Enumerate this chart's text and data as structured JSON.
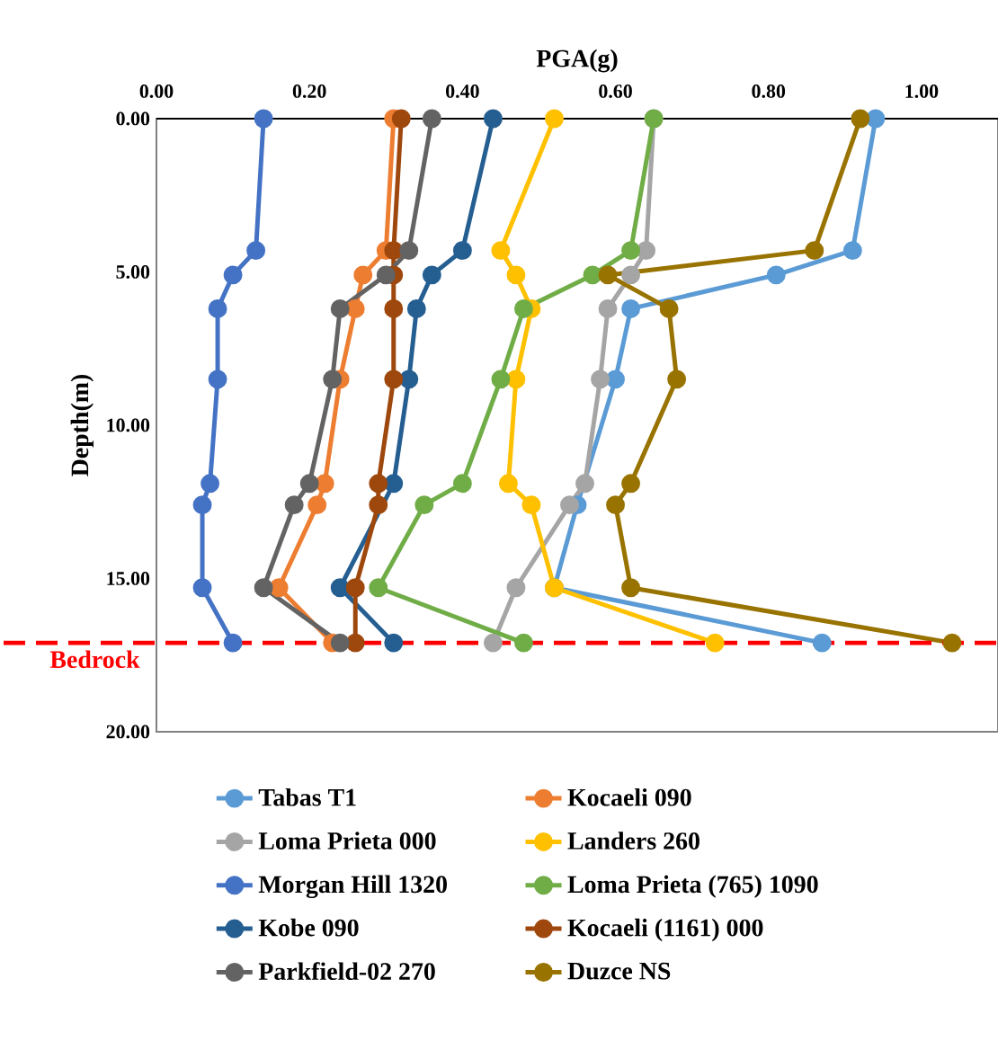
{
  "chart_data": {
    "type": "line",
    "xlabel": "PGA(g)",
    "ylabel": "Depth(m)",
    "xlim": [
      0,
      1.1
    ],
    "ylim": [
      20,
      0
    ],
    "xticks": [
      {
        "value": 0,
        "label": "0.00"
      },
      {
        "value": 0.2,
        "label": "0.20"
      },
      {
        "value": 0.4,
        "label": "0.40"
      },
      {
        "value": 0.6,
        "label": "0.60"
      },
      {
        "value": 0.8,
        "label": "0.80"
      },
      {
        "value": 1.0,
        "label": "1.00"
      }
    ],
    "yticks": [
      {
        "value": 0,
        "label": "0.00"
      },
      {
        "value": 5,
        "label": "5.00"
      },
      {
        "value": 10,
        "label": "10.00"
      },
      {
        "value": 15,
        "label": "15.00"
      },
      {
        "value": 20,
        "label": "20.00"
      }
    ],
    "grid": false,
    "legend": "bottom",
    "marker": "circle",
    "line_style": "solid",
    "ref_lines": [
      {
        "axis": "y",
        "value": 17.1,
        "label": "Bedrock",
        "color": "#ff0000",
        "line_style": "dashed"
      }
    ],
    "series": [
      {
        "name": "Tabas T1",
        "color": "#5b9bd5",
        "x": [
          0.94,
          0.91,
          0.81,
          0.62,
          0.6,
          0.55,
          0.52,
          0.87
        ],
        "values": [
          0,
          4.3,
          5.1,
          6.2,
          8.5,
          12.6,
          15.3,
          17.1
        ]
      },
      {
        "name": "Kocaeli 090",
        "color": "#ed7d31",
        "x": [
          0.31,
          0.3,
          0.27,
          0.26,
          0.24,
          0.22,
          0.21,
          0.16,
          0.23
        ],
        "values": [
          0,
          4.3,
          5.1,
          6.2,
          8.5,
          11.9,
          12.6,
          15.3,
          17.1
        ]
      },
      {
        "name": "Loma Prieta 000",
        "color": "#a5a5a5",
        "x": [
          0.65,
          0.64,
          0.62,
          0.59,
          0.58,
          0.56,
          0.54,
          0.47,
          0.44
        ],
        "values": [
          0,
          4.3,
          5.1,
          6.2,
          8.5,
          11.9,
          12.6,
          15.3,
          17.1
        ]
      },
      {
        "name": "Landers 260",
        "color": "#ffc000",
        "x": [
          0.52,
          0.45,
          0.47,
          0.49,
          0.47,
          0.46,
          0.49,
          0.52,
          0.73
        ],
        "values": [
          0,
          4.3,
          5.1,
          6.2,
          8.5,
          11.9,
          12.6,
          15.3,
          17.1
        ]
      },
      {
        "name": "Morgan Hill 1320",
        "color": "#4472c4",
        "x": [
          0.14,
          0.13,
          0.1,
          0.08,
          0.08,
          0.07,
          0.06,
          0.06,
          0.1
        ],
        "values": [
          0,
          4.3,
          5.1,
          6.2,
          8.5,
          11.9,
          12.6,
          15.3,
          17.1
        ]
      },
      {
        "name": "Loma Prieta (765) 1090",
        "color": "#70ad47",
        "x": [
          0.65,
          0.62,
          0.57,
          0.48,
          0.45,
          0.4,
          0.35,
          0.29,
          0.48
        ],
        "values": [
          0,
          4.3,
          5.1,
          6.2,
          8.5,
          11.9,
          12.6,
          15.3,
          17.1
        ]
      },
      {
        "name": "Kobe 090",
        "color": "#255e91",
        "x": [
          0.44,
          0.4,
          0.36,
          0.34,
          0.33,
          0.31,
          0.24,
          0.31
        ],
        "values": [
          0,
          4.3,
          5.1,
          6.2,
          8.5,
          11.9,
          15.3,
          17.1
        ]
      },
      {
        "name": "Kocaeli (1161) 000",
        "color": "#9e480e",
        "x": [
          0.32,
          0.31,
          0.31,
          0.31,
          0.31,
          0.29,
          0.29,
          0.26,
          0.26
        ],
        "values": [
          0,
          4.3,
          5.1,
          6.2,
          8.5,
          11.9,
          12.6,
          15.3,
          17.1
        ]
      },
      {
        "name": "Parkfield-02 270",
        "color": "#636363",
        "x": [
          0.36,
          0.33,
          0.3,
          0.24,
          0.23,
          0.2,
          0.18,
          0.14,
          0.24
        ],
        "values": [
          0,
          4.3,
          5.1,
          6.2,
          8.5,
          11.9,
          12.6,
          15.3,
          17.1
        ]
      },
      {
        "name": "Duzce NS",
        "color": "#997300",
        "x": [
          0.92,
          0.86,
          0.59,
          0.67,
          0.68,
          0.62,
          0.6,
          0.62,
          1.04
        ],
        "values": [
          0,
          4.3,
          5.1,
          6.2,
          8.5,
          11.9,
          12.6,
          15.3,
          17.1
        ]
      }
    ]
  }
}
